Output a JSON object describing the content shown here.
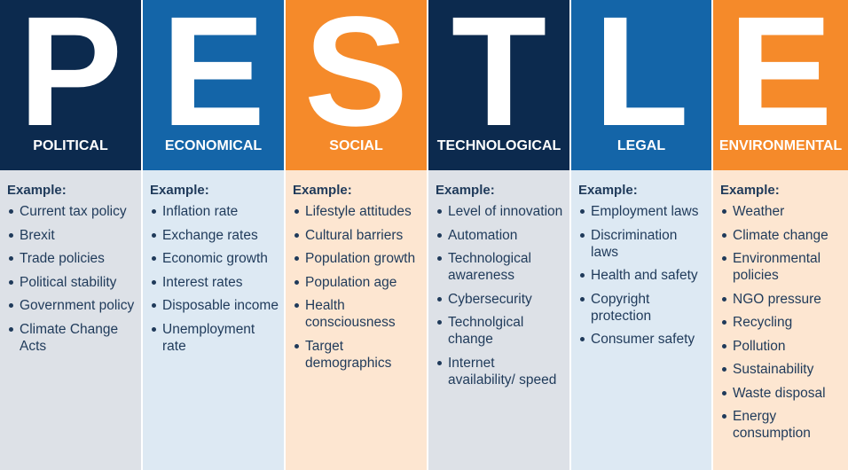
{
  "colors": {
    "navy": "#0c2a4e",
    "blue": "#1465a8",
    "orange": "#f58a2a",
    "body_gray": "#dde1e7",
    "body_blue": "#dde9f3",
    "body_peach": "#fde6d1"
  },
  "example_label": "Example:",
  "columns": [
    {
      "letter": "P",
      "category": "POLITICAL",
      "items": [
        "Current tax policy",
        "Brexit",
        "Trade policies",
        "Political stability",
        "Government policy",
        "Climate Change Acts"
      ]
    },
    {
      "letter": "E",
      "category": "ECONOMICAL",
      "items": [
        "Inflation rate",
        "Exchange rates",
        "Economic growth",
        "Interest rates",
        "Disposable income",
        "Unemployment rate"
      ]
    },
    {
      "letter": "S",
      "category": "SOCIAL",
      "items": [
        "Lifestyle attitudes",
        "Cultural barriers",
        "Population growth",
        "Population age",
        "Health consciousness",
        "Target demographics"
      ]
    },
    {
      "letter": "T",
      "category": "TECHNOLOGICAL",
      "items": [
        "Level of innovation",
        "Automation",
        "Technological awareness",
        "Cybersecurity",
        "Technolgical change",
        "Internet availability/ speed"
      ]
    },
    {
      "letter": "L",
      "category": "LEGAL",
      "items": [
        "Employment laws",
        "Discrimination laws",
        "Health and safety",
        "Copyright protection",
        "Consumer safety"
      ]
    },
    {
      "letter": "E",
      "category": "ENVIRONMENTAL",
      "items": [
        "Weather",
        "Climate change",
        "Environmental policies",
        "NGO pressure",
        "Recycling",
        "Pollution",
        "Sustainability",
        "Waste disposal",
        "Energy consumption"
      ]
    }
  ]
}
